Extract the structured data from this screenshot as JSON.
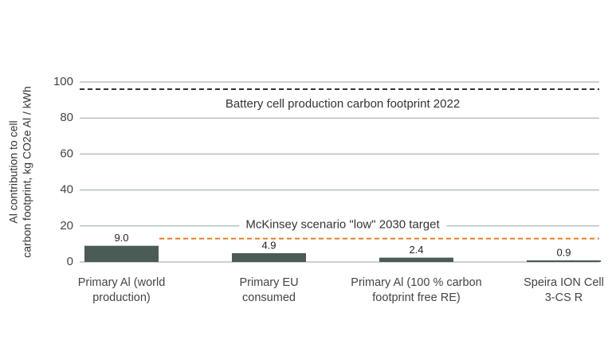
{
  "chart_data": {
    "type": "bar",
    "y_label": [
      "Al contribution to cell",
      "carbon footprint, kg CO2e Al / kWh"
    ],
    "categories": [
      [
        "Primary Al (world",
        "production)"
      ],
      [
        "Primary EU",
        "consumed"
      ],
      [
        "Primary Al (100 % carbon",
        "footprint free RE)"
      ],
      [
        "Speira ION Cell",
        "3-CS R"
      ]
    ],
    "values": [
      9.0,
      4.9,
      2.4,
      0.9
    ],
    "value_labels": [
      "9.0",
      "4.9",
      "2.4",
      "0.9"
    ],
    "color": "#4b5b56",
    "ylim": [
      0,
      100
    ],
    "yticks": [
      0,
      20,
      40,
      60,
      80,
      100
    ],
    "grid": true,
    "reference_lines": [
      {
        "value": 96,
        "label": "Battery cell production carbon footprint 2022",
        "color": "#333333"
      },
      {
        "value": 13,
        "label": "McKinsey scenario \"low\" 2030 target",
        "color": "#ee7d1a"
      }
    ]
  }
}
